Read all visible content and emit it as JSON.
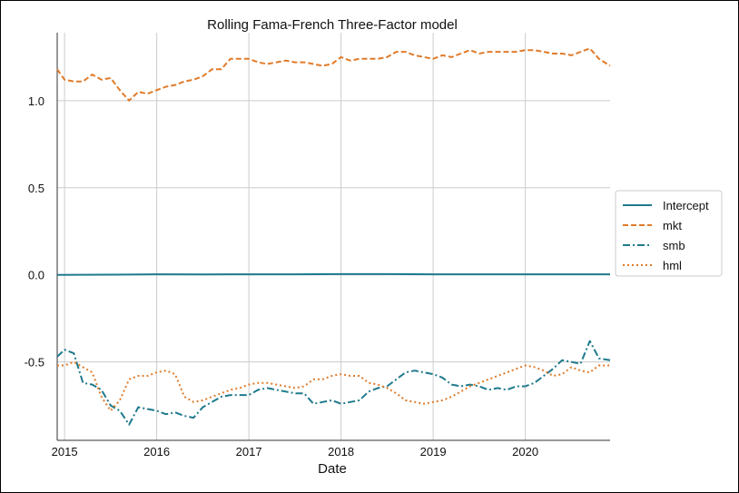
{
  "chart_data": {
    "type": "line",
    "title": "Rolling Fama-French Three-Factor model",
    "xlabel": "Date",
    "ylabel": "",
    "xlim": [
      2014.92,
      2020.92
    ],
    "ylim": [
      -0.95,
      1.39
    ],
    "x_ticks": [
      2015,
      2016,
      2017,
      2018,
      2019,
      2020
    ],
    "x_tick_labels": [
      "2015",
      "2016",
      "2017",
      "2018",
      "2019",
      "2020"
    ],
    "y_ticks": [
      -0.5,
      0.0,
      0.5,
      1.0
    ],
    "y_tick_labels": [
      "-0.5",
      "0.0",
      "0.5",
      "1.0"
    ],
    "grid": true,
    "legend_position": "center-right",
    "series": [
      {
        "name": "Intercept",
        "color": "#1f7a8c",
        "dash": "solid",
        "x": [
          2014.92,
          2015.5,
          2016.0,
          2016.5,
          2017.0,
          2017.5,
          2018.0,
          2018.5,
          2019.0,
          2019.5,
          2020.0,
          2020.5,
          2020.92
        ],
        "y": [
          0.0,
          0.001,
          0.003,
          0.002,
          0.003,
          0.003,
          0.004,
          0.004,
          0.003,
          0.003,
          0.003,
          0.003,
          0.003
        ]
      },
      {
        "name": "mkt",
        "color": "#e07b2a",
        "dash": "dashed",
        "x": [
          2014.92,
          2015.0,
          2015.1,
          2015.2,
          2015.3,
          2015.4,
          2015.5,
          2015.6,
          2015.7,
          2015.8,
          2015.9,
          2016.0,
          2016.1,
          2016.2,
          2016.3,
          2016.4,
          2016.5,
          2016.6,
          2016.7,
          2016.8,
          2016.9,
          2017.0,
          2017.1,
          2017.2,
          2017.3,
          2017.4,
          2017.5,
          2017.6,
          2017.7,
          2017.8,
          2017.9,
          2018.0,
          2018.1,
          2018.2,
          2018.3,
          2018.4,
          2018.5,
          2018.6,
          2018.7,
          2018.8,
          2018.9,
          2019.0,
          2019.1,
          2019.2,
          2019.3,
          2019.4,
          2019.5,
          2019.6,
          2019.7,
          2019.8,
          2019.9,
          2020.0,
          2020.1,
          2020.2,
          2020.3,
          2020.4,
          2020.5,
          2020.6,
          2020.7,
          2020.8,
          2020.92
        ],
        "y": [
          1.18,
          1.12,
          1.11,
          1.11,
          1.15,
          1.12,
          1.13,
          1.06,
          1.0,
          1.05,
          1.04,
          1.06,
          1.08,
          1.09,
          1.11,
          1.12,
          1.14,
          1.18,
          1.18,
          1.24,
          1.24,
          1.24,
          1.22,
          1.21,
          1.22,
          1.23,
          1.22,
          1.22,
          1.21,
          1.2,
          1.21,
          1.25,
          1.23,
          1.24,
          1.24,
          1.24,
          1.25,
          1.28,
          1.28,
          1.26,
          1.25,
          1.24,
          1.26,
          1.25,
          1.27,
          1.29,
          1.27,
          1.28,
          1.28,
          1.28,
          1.28,
          1.29,
          1.29,
          1.28,
          1.27,
          1.27,
          1.26,
          1.28,
          1.3,
          1.24,
          1.2
        ]
      },
      {
        "name": "smb",
        "color": "#1f7a8c",
        "dash": "dashdot",
        "x": [
          2014.92,
          2015.0,
          2015.1,
          2015.2,
          2015.3,
          2015.4,
          2015.5,
          2015.6,
          2015.7,
          2015.8,
          2015.9,
          2016.0,
          2016.1,
          2016.2,
          2016.3,
          2016.4,
          2016.5,
          2016.6,
          2016.7,
          2016.8,
          2016.9,
          2017.0,
          2017.1,
          2017.2,
          2017.3,
          2017.4,
          2017.5,
          2017.6,
          2017.7,
          2017.8,
          2017.9,
          2018.0,
          2018.1,
          2018.2,
          2018.3,
          2018.4,
          2018.5,
          2018.6,
          2018.7,
          2018.8,
          2018.9,
          2019.0,
          2019.1,
          2019.2,
          2019.3,
          2019.4,
          2019.5,
          2019.6,
          2019.7,
          2019.8,
          2019.9,
          2020.0,
          2020.1,
          2020.2,
          2020.3,
          2020.4,
          2020.5,
          2020.6,
          2020.7,
          2020.8,
          2020.92
        ],
        "y": [
          -0.47,
          -0.43,
          -0.45,
          -0.62,
          -0.63,
          -0.66,
          -0.75,
          -0.78,
          -0.86,
          -0.76,
          -0.77,
          -0.78,
          -0.8,
          -0.79,
          -0.81,
          -0.82,
          -0.76,
          -0.73,
          -0.7,
          -0.69,
          -0.69,
          -0.69,
          -0.66,
          -0.65,
          -0.66,
          -0.67,
          -0.68,
          -0.68,
          -0.74,
          -0.73,
          -0.72,
          -0.74,
          -0.73,
          -0.72,
          -0.67,
          -0.65,
          -0.64,
          -0.6,
          -0.56,
          -0.55,
          -0.56,
          -0.57,
          -0.59,
          -0.63,
          -0.64,
          -0.63,
          -0.64,
          -0.66,
          -0.65,
          -0.66,
          -0.64,
          -0.64,
          -0.62,
          -0.58,
          -0.54,
          -0.49,
          -0.5,
          -0.51,
          -0.38,
          -0.48,
          -0.49
        ]
      },
      {
        "name": "hml",
        "color": "#e07b2a",
        "dash": "dotted",
        "x": [
          2014.92,
          2015.0,
          2015.1,
          2015.2,
          2015.3,
          2015.4,
          2015.5,
          2015.6,
          2015.7,
          2015.8,
          2015.9,
          2016.0,
          2016.1,
          2016.2,
          2016.3,
          2016.4,
          2016.5,
          2016.6,
          2016.7,
          2016.8,
          2016.9,
          2017.0,
          2017.1,
          2017.2,
          2017.3,
          2017.4,
          2017.5,
          2017.6,
          2017.7,
          2017.8,
          2017.9,
          2018.0,
          2018.1,
          2018.2,
          2018.3,
          2018.4,
          2018.5,
          2018.6,
          2018.7,
          2018.8,
          2018.9,
          2019.0,
          2019.1,
          2019.2,
          2019.3,
          2019.4,
          2019.5,
          2019.6,
          2019.7,
          2019.8,
          2019.9,
          2020.0,
          2020.1,
          2020.2,
          2020.3,
          2020.4,
          2020.5,
          2020.6,
          2020.7,
          2020.8,
          2020.92
        ],
        "y": [
          -0.52,
          -0.52,
          -0.5,
          -0.53,
          -0.56,
          -0.7,
          -0.78,
          -0.72,
          -0.6,
          -0.58,
          -0.58,
          -0.56,
          -0.55,
          -0.57,
          -0.7,
          -0.73,
          -0.72,
          -0.7,
          -0.68,
          -0.66,
          -0.65,
          -0.63,
          -0.62,
          -0.62,
          -0.63,
          -0.64,
          -0.65,
          -0.64,
          -0.6,
          -0.6,
          -0.58,
          -0.57,
          -0.58,
          -0.58,
          -0.62,
          -0.63,
          -0.65,
          -0.68,
          -0.72,
          -0.73,
          -0.74,
          -0.73,
          -0.72,
          -0.7,
          -0.67,
          -0.64,
          -0.62,
          -0.6,
          -0.58,
          -0.56,
          -0.54,
          -0.52,
          -0.53,
          -0.55,
          -0.58,
          -0.57,
          -0.53,
          -0.55,
          -0.56,
          -0.52,
          -0.52
        ]
      }
    ]
  }
}
